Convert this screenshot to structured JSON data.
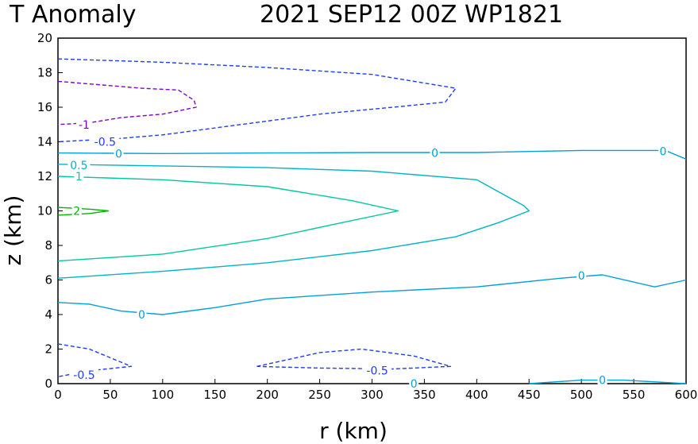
{
  "chart_data": {
    "type": "contour",
    "title_left": "T Anomaly",
    "title_right": "2021 SEP12 00Z   WP1821",
    "xlabel": "r (km)",
    "ylabel": "z (km)",
    "xlim": [
      0,
      600
    ],
    "ylim": [
      0,
      20
    ],
    "xticks": [
      "0",
      "50",
      "100",
      "150",
      "200",
      "250",
      "300",
      "350",
      "400",
      "450",
      "500",
      "550",
      "600"
    ],
    "yticks": [
      "0",
      "2",
      "4",
      "6",
      "8",
      "10",
      "12",
      "14",
      "16",
      "18",
      "20"
    ],
    "grid": false,
    "contours": [
      {
        "level": "-1",
        "color": "#8000c8",
        "dashed": true,
        "points": [
          [
            0,
            17.5
          ],
          [
            80,
            17.1
          ],
          [
            115,
            17.0
          ],
          [
            130,
            16.4
          ],
          [
            132,
            16.0
          ],
          [
            100,
            15.6
          ],
          [
            60,
            15.4
          ],
          [
            30,
            15.1
          ],
          [
            0,
            15.0
          ]
        ],
        "labels": [
          {
            "text": "-1",
            "x": 25,
            "y": 15.0
          }
        ]
      },
      {
        "level": "-0.5",
        "color": "#1e3cff",
        "dashed": true,
        "points": [
          [
            0,
            18.8
          ],
          [
            100,
            18.6
          ],
          [
            200,
            18.3
          ],
          [
            300,
            17.9
          ],
          [
            380,
            17.1
          ],
          [
            370,
            16.3
          ],
          [
            320,
            16.0
          ],
          [
            250,
            15.6
          ],
          [
            200,
            15.2
          ],
          [
            100,
            14.4
          ],
          [
            60,
            14.2
          ],
          [
            0,
            14.0
          ]
        ],
        "labels": [
          {
            "text": "-0.5",
            "x": 45,
            "y": 14.0
          }
        ]
      },
      {
        "level": "0",
        "color": "#00a0dc",
        "dashed": false,
        "points": [
          [
            0,
            13.35
          ],
          [
            100,
            13.32
          ],
          [
            200,
            13.35
          ],
          [
            300,
            13.38
          ],
          [
            400,
            13.38
          ],
          [
            500,
            13.5
          ],
          [
            580,
            13.5
          ],
          [
            600,
            13.0
          ]
        ],
        "labels": [
          {
            "text": "0",
            "x": 58,
            "y": 13.3
          },
          {
            "text": "0",
            "x": 360,
            "y": 13.35
          },
          {
            "text": "0",
            "x": 578,
            "y": 13.45
          }
        ]
      },
      {
        "level": "0.5",
        "color": "#00b4c8",
        "dashed": false,
        "points": [
          [
            0,
            12.7
          ],
          [
            100,
            12.6
          ],
          [
            200,
            12.5
          ],
          [
            300,
            12.3
          ],
          [
            400,
            11.8
          ],
          [
            445,
            10.3
          ],
          [
            450,
            10.0
          ],
          [
            420,
            9.3
          ],
          [
            380,
            8.5
          ],
          [
            300,
            7.7
          ],
          [
            200,
            7.0
          ],
          [
            100,
            6.5
          ],
          [
            0,
            6.1
          ]
        ],
        "labels": [
          {
            "text": "0.5",
            "x": 20,
            "y": 12.65
          }
        ]
      },
      {
        "level": "1",
        "color": "#00c8a0",
        "dashed": false,
        "points": [
          [
            0,
            12.0
          ],
          [
            100,
            11.8
          ],
          [
            200,
            11.4
          ],
          [
            280,
            10.6
          ],
          [
            325,
            10.0
          ],
          [
            270,
            9.3
          ],
          [
            200,
            8.4
          ],
          [
            100,
            7.5
          ],
          [
            0,
            7.1
          ]
        ],
        "labels": [
          {
            "text": "1",
            "x": 20,
            "y": 12.0
          }
        ]
      },
      {
        "level": "2",
        "color": "#00b400",
        "dashed": false,
        "points": [
          [
            0,
            10.2
          ],
          [
            30,
            10.1
          ],
          [
            48,
            10.0
          ],
          [
            30,
            9.85
          ],
          [
            0,
            9.75
          ]
        ],
        "labels": [
          {
            "text": "2",
            "x": 18,
            "y": 10.0
          }
        ]
      },
      {
        "level": "0",
        "color": "#00a0dc",
        "dashed": false,
        "points": [
          [
            0,
            4.7
          ],
          [
            30,
            4.6
          ],
          [
            60,
            4.2
          ],
          [
            100,
            4.0
          ],
          [
            150,
            4.4
          ],
          [
            200,
            4.9
          ],
          [
            300,
            5.3
          ],
          [
            400,
            5.6
          ],
          [
            480,
            6.1
          ],
          [
            520,
            6.3
          ],
          [
            570,
            5.6
          ],
          [
            600,
            6.0
          ]
        ],
        "labels": [
          {
            "text": "0",
            "x": 80,
            "y": 4.0
          },
          {
            "text": "0",
            "x": 500,
            "y": 6.25
          }
        ]
      },
      {
        "level": "-0.5",
        "color": "#1e3cff",
        "dashed": true,
        "points": [
          [
            0,
            2.3
          ],
          [
            30,
            2.0
          ],
          [
            70,
            1.0
          ],
          [
            30,
            0.75
          ],
          [
            0,
            0.4
          ]
        ],
        "labels": [
          {
            "text": "-0.5",
            "x": 25,
            "y": 0.5
          }
        ]
      },
      {
        "level": "-0.5",
        "color": "#1e3cff",
        "dashed": true,
        "points": [
          [
            190,
            1.0
          ],
          [
            250,
            1.8
          ],
          [
            290,
            2.0
          ],
          [
            340,
            1.6
          ],
          [
            375,
            1.0
          ],
          [
            320,
            0.85
          ],
          [
            250,
            0.9
          ],
          [
            190,
            1.0
          ]
        ],
        "labels": [
          {
            "text": "-0.5",
            "x": 305,
            "y": 0.75
          }
        ]
      },
      {
        "level": "0",
        "color": "#00a0dc",
        "dashed": false,
        "points": [
          [
            450,
            0.0
          ],
          [
            500,
            0.2
          ],
          [
            540,
            0.2
          ],
          [
            600,
            0.0
          ]
        ],
        "labels": [
          {
            "text": "0",
            "x": 520,
            "y": 0.2
          },
          {
            "text": "0",
            "x": 340,
            "y": 0.0
          }
        ]
      }
    ]
  }
}
